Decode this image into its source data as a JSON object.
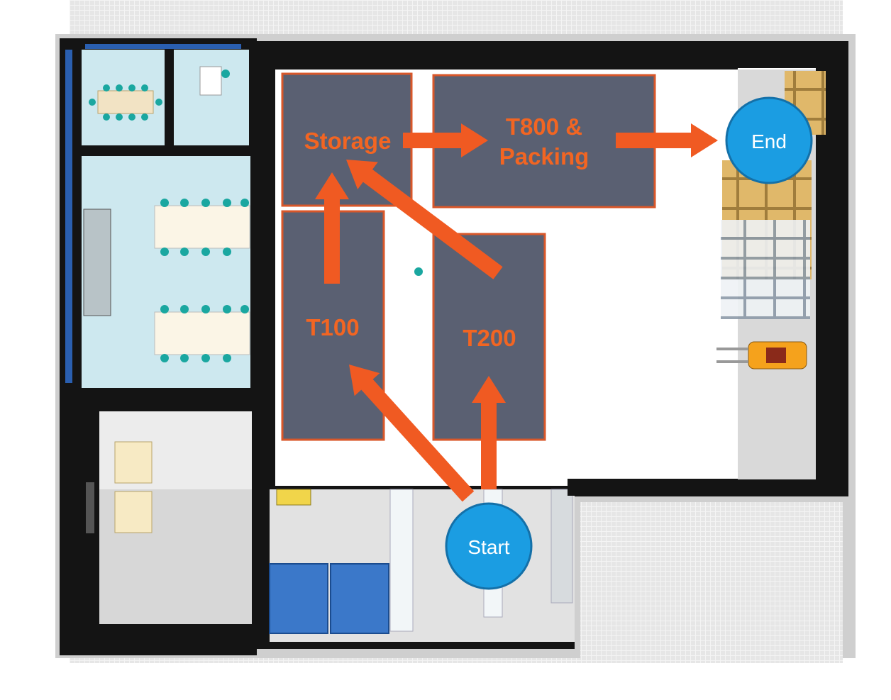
{
  "zones": {
    "storage": "Storage",
    "packing_line1": "T800 &",
    "packing_line2": "Packing",
    "t100": "T100",
    "t200": "T200"
  },
  "nodes": {
    "start": "Start",
    "end": "End"
  },
  "colors": {
    "zone_fill": "#4e5467",
    "zone_border": "#d8572a",
    "zone_label": "#f26522",
    "arrow": "#f05a22",
    "node_fill": "#1b9de2",
    "node_border": "#1470a8",
    "wall": "#141414",
    "office_floor": "#cde8ef",
    "outer_ground": "#e3e3e3"
  }
}
